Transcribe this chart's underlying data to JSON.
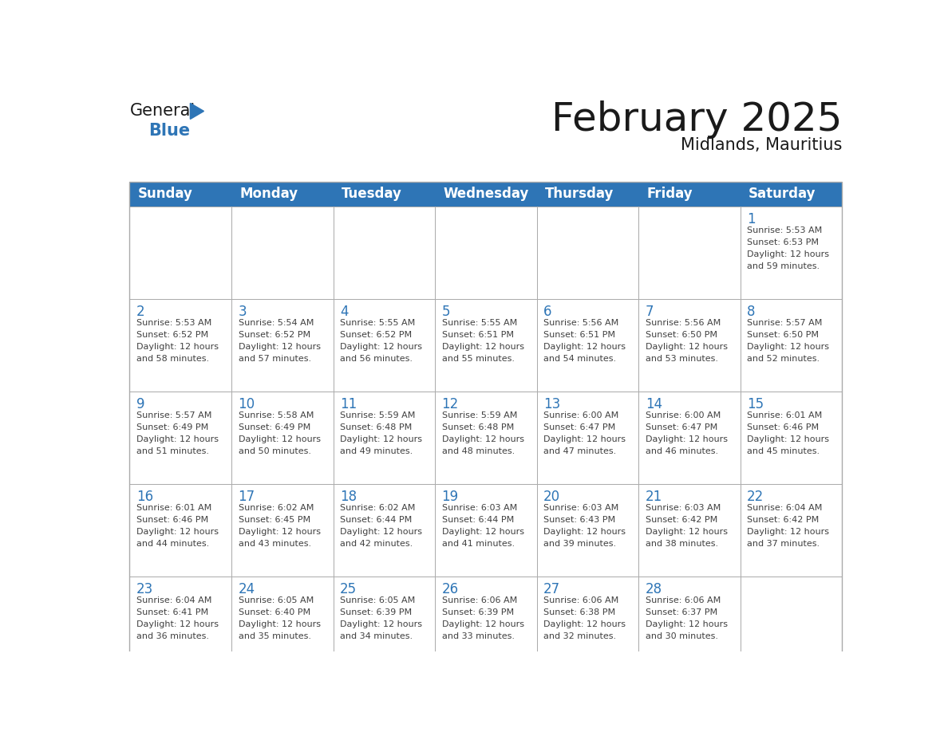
{
  "title": "February 2025",
  "subtitle": "Midlands, Mauritius",
  "days_of_week": [
    "Sunday",
    "Monday",
    "Tuesday",
    "Wednesday",
    "Thursday",
    "Friday",
    "Saturday"
  ],
  "header_bg": "#2E75B6",
  "header_text": "#FFFFFF",
  "cell_bg": "#FFFFFF",
  "day_number_color": "#2E75B6",
  "text_color": "#404040",
  "border_color": "#AAAAAA",
  "title_color": "#1A1A1A",
  "logo_general_color": "#1A1A1A",
  "logo_blue_color": "#2E75B6",
  "calendar_data": [
    [
      null,
      null,
      null,
      null,
      null,
      null,
      {
        "day": 1,
        "sunrise": "5:53 AM",
        "sunset": "6:53 PM",
        "daylight_hrs": "12 hours",
        "daylight_min": "59 minutes"
      }
    ],
    [
      {
        "day": 2,
        "sunrise": "5:53 AM",
        "sunset": "6:52 PM",
        "daylight_hrs": "12 hours",
        "daylight_min": "58 minutes"
      },
      {
        "day": 3,
        "sunrise": "5:54 AM",
        "sunset": "6:52 PM",
        "daylight_hrs": "12 hours",
        "daylight_min": "57 minutes"
      },
      {
        "day": 4,
        "sunrise": "5:55 AM",
        "sunset": "6:52 PM",
        "daylight_hrs": "12 hours",
        "daylight_min": "56 minutes"
      },
      {
        "day": 5,
        "sunrise": "5:55 AM",
        "sunset": "6:51 PM",
        "daylight_hrs": "12 hours",
        "daylight_min": "55 minutes"
      },
      {
        "day": 6,
        "sunrise": "5:56 AM",
        "sunset": "6:51 PM",
        "daylight_hrs": "12 hours",
        "daylight_min": "54 minutes"
      },
      {
        "day": 7,
        "sunrise": "5:56 AM",
        "sunset": "6:50 PM",
        "daylight_hrs": "12 hours",
        "daylight_min": "53 minutes"
      },
      {
        "day": 8,
        "sunrise": "5:57 AM",
        "sunset": "6:50 PM",
        "daylight_hrs": "12 hours",
        "daylight_min": "52 minutes"
      }
    ],
    [
      {
        "day": 9,
        "sunrise": "5:57 AM",
        "sunset": "6:49 PM",
        "daylight_hrs": "12 hours",
        "daylight_min": "51 minutes"
      },
      {
        "day": 10,
        "sunrise": "5:58 AM",
        "sunset": "6:49 PM",
        "daylight_hrs": "12 hours",
        "daylight_min": "50 minutes"
      },
      {
        "day": 11,
        "sunrise": "5:59 AM",
        "sunset": "6:48 PM",
        "daylight_hrs": "12 hours",
        "daylight_min": "49 minutes"
      },
      {
        "day": 12,
        "sunrise": "5:59 AM",
        "sunset": "6:48 PM",
        "daylight_hrs": "12 hours",
        "daylight_min": "48 minutes"
      },
      {
        "day": 13,
        "sunrise": "6:00 AM",
        "sunset": "6:47 PM",
        "daylight_hrs": "12 hours",
        "daylight_min": "47 minutes"
      },
      {
        "day": 14,
        "sunrise": "6:00 AM",
        "sunset": "6:47 PM",
        "daylight_hrs": "12 hours",
        "daylight_min": "46 minutes"
      },
      {
        "day": 15,
        "sunrise": "6:01 AM",
        "sunset": "6:46 PM",
        "daylight_hrs": "12 hours",
        "daylight_min": "45 minutes"
      }
    ],
    [
      {
        "day": 16,
        "sunrise": "6:01 AM",
        "sunset": "6:46 PM",
        "daylight_hrs": "12 hours",
        "daylight_min": "44 minutes"
      },
      {
        "day": 17,
        "sunrise": "6:02 AM",
        "sunset": "6:45 PM",
        "daylight_hrs": "12 hours",
        "daylight_min": "43 minutes"
      },
      {
        "day": 18,
        "sunrise": "6:02 AM",
        "sunset": "6:44 PM",
        "daylight_hrs": "12 hours",
        "daylight_min": "42 minutes"
      },
      {
        "day": 19,
        "sunrise": "6:03 AM",
        "sunset": "6:44 PM",
        "daylight_hrs": "12 hours",
        "daylight_min": "41 minutes"
      },
      {
        "day": 20,
        "sunrise": "6:03 AM",
        "sunset": "6:43 PM",
        "daylight_hrs": "12 hours",
        "daylight_min": "39 minutes"
      },
      {
        "day": 21,
        "sunrise": "6:03 AM",
        "sunset": "6:42 PM",
        "daylight_hrs": "12 hours",
        "daylight_min": "38 minutes"
      },
      {
        "day": 22,
        "sunrise": "6:04 AM",
        "sunset": "6:42 PM",
        "daylight_hrs": "12 hours",
        "daylight_min": "37 minutes"
      }
    ],
    [
      {
        "day": 23,
        "sunrise": "6:04 AM",
        "sunset": "6:41 PM",
        "daylight_hrs": "12 hours",
        "daylight_min": "36 minutes"
      },
      {
        "day": 24,
        "sunrise": "6:05 AM",
        "sunset": "6:40 PM",
        "daylight_hrs": "12 hours",
        "daylight_min": "35 minutes"
      },
      {
        "day": 25,
        "sunrise": "6:05 AM",
        "sunset": "6:39 PM",
        "daylight_hrs": "12 hours",
        "daylight_min": "34 minutes"
      },
      {
        "day": 26,
        "sunrise": "6:06 AM",
        "sunset": "6:39 PM",
        "daylight_hrs": "12 hours",
        "daylight_min": "33 minutes"
      },
      {
        "day": 27,
        "sunrise": "6:06 AM",
        "sunset": "6:38 PM",
        "daylight_hrs": "12 hours",
        "daylight_min": "32 minutes"
      },
      {
        "day": 28,
        "sunrise": "6:06 AM",
        "sunset": "6:37 PM",
        "daylight_hrs": "12 hours",
        "daylight_min": "30 minutes"
      },
      null
    ]
  ]
}
